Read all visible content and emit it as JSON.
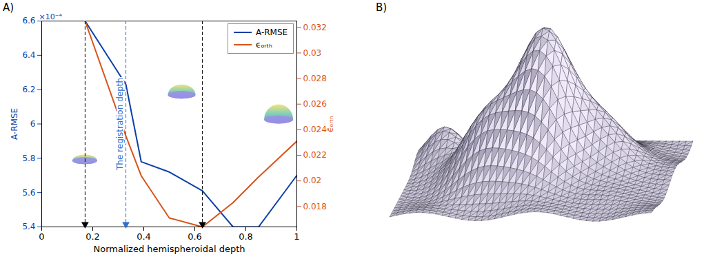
{
  "chart_data": {
    "type": "line",
    "panel_label": "A)",
    "xlabel": "Normalized hemispheroidal depth",
    "ylabel": "A-RMSE",
    "y_multiplier_label": "×10⁻⁴",
    "y2label": "ϵ̄ₒᵣₜₕ",
    "x": [
      0.17,
      0.33,
      0.39,
      0.5,
      0.63,
      0.75,
      0.85,
      1
    ],
    "xlim": [
      0,
      1
    ],
    "xticks": [
      0,
      0.2,
      0.4,
      0.6,
      0.8,
      1
    ],
    "ylim": [
      0.00054,
      0.00066
    ],
    "yticks": [
      {
        "value": 0.00054,
        "label": "5.4"
      },
      {
        "value": 0.00056,
        "label": "5.6"
      },
      {
        "value": 0.00058,
        "label": "5.8"
      },
      {
        "value": 0.0006,
        "label": "6"
      },
      {
        "value": 0.00062,
        "label": "6.2"
      },
      {
        "value": 0.00064,
        "label": "6.4"
      },
      {
        "value": 0.00066,
        "label": "6.6"
      }
    ],
    "y2lim": [
      0.0164,
      0.0325
    ],
    "y2ticks": [
      0.018,
      0.02,
      0.022,
      0.024,
      0.026,
      0.028,
      0.03,
      0.032
    ],
    "series": [
      {
        "name": "A-RMSE",
        "color": "#0b3fa8",
        "values": [
          0.00066,
          0.000623,
          0.000578,
          0.000572,
          0.000561,
          0.00054,
          0.00054,
          0.00057
        ]
      },
      {
        "name": "ϵₒᵣₜₕ",
        "color": "#d95319",
        "axis": "y2",
        "values": [
          0.0325,
          0.0235,
          0.0204,
          0.0171,
          0.0164,
          0.0183,
          0.0203,
          0.0231
        ]
      }
    ],
    "legend": "top-right",
    "annotations": [
      {
        "x": 0.17,
        "color": "#000000",
        "line_style": "dashed"
      },
      {
        "x": 0.33,
        "color": "#2c6fd1",
        "line_style": "dashed",
        "label": "The registration depth"
      },
      {
        "x": 0.63,
        "color": "#000000",
        "line_style": "dashed"
      }
    ]
  },
  "mesh_panel": {
    "panel_label": "B)"
  }
}
